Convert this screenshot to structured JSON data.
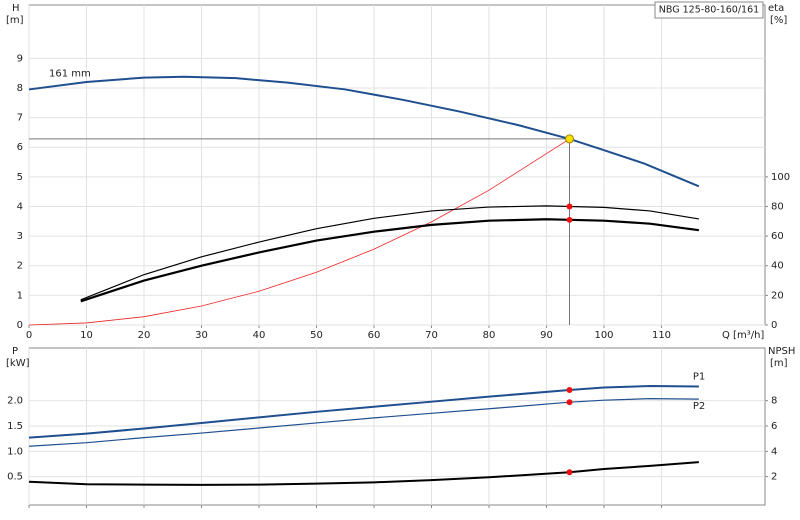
{
  "chart_data": [
    {
      "type": "line",
      "title": "NBG 125-80-160/161",
      "x_label": "Q [m³/h]",
      "y_label": "H",
      "y_unit": "[m]",
      "y2_label": "eta",
      "y2_unit": "[%]",
      "xlim": [
        0,
        128
      ],
      "xticks": [
        0,
        10,
        20,
        30,
        40,
        50,
        60,
        70,
        80,
        90,
        100,
        110
      ],
      "x_tick_labels": true,
      "ylim": [
        0,
        10.8
      ],
      "yticks": [
        0,
        1,
        2,
        3,
        4,
        5,
        6,
        7,
        8,
        9
      ],
      "y2lim": [
        0,
        216
      ],
      "y2ticks": [
        0,
        20,
        40,
        60,
        80,
        100
      ],
      "grid": true,
      "series": [
        {
          "name": "161 mm",
          "color": "#1f4f8f",
          "width": 2,
          "x": [
            0,
            10,
            20,
            27,
            36,
            45,
            55,
            65,
            75,
            85,
            94,
            100,
            107,
            116.5
          ],
          "values": [
            7.95,
            8.2,
            8.35,
            8.38,
            8.33,
            8.18,
            7.95,
            7.6,
            7.2,
            6.75,
            6.28,
            5.9,
            5.45,
            4.68
          ]
        },
        {
          "color": "#ee2222",
          "width": 0.8,
          "x": [
            0,
            10,
            20,
            30,
            40,
            50,
            60,
            70,
            80,
            94
          ],
          "values": [
            0,
            0.07,
            0.28,
            0.64,
            1.14,
            1.78,
            2.56,
            3.48,
            4.55,
            6.28
          ]
        },
        {
          "color": "#000000",
          "width": 1.2,
          "axis": "y2",
          "x": [
            9,
            20,
            30,
            40,
            50,
            60,
            70,
            80,
            90,
            94,
            100,
            108,
            116.5
          ],
          "values": [
            17,
            34,
            46,
            56,
            65,
            72,
            77,
            79.6,
            80.4,
            80,
            79.4,
            77,
            71.6
          ]
        },
        {
          "color": "#000000",
          "width": 2.2,
          "axis": "y2",
          "x": [
            9,
            20,
            30,
            40,
            50,
            60,
            70,
            80,
            90,
            94,
            100,
            108,
            116.5
          ],
          "values": [
            16,
            30,
            40,
            49,
            57,
            63,
            67.6,
            70.4,
            71.4,
            71,
            70.4,
            68.4,
            64
          ]
        }
      ],
      "points": [
        {
          "x": 94,
          "y": 6.28,
          "color": "#ffe000",
          "operating": true
        },
        {
          "x": 94,
          "y": 80,
          "color": "#ee1111",
          "axis": "y2"
        },
        {
          "x": 94,
          "y": 71,
          "color": "#ee1111",
          "axis": "y2"
        }
      ]
    },
    {
      "type": "line",
      "y_label": "P",
      "y_unit": "[kW]",
      "y2_label": "NPSH",
      "y2_unit": "[m]",
      "xlim": [
        0,
        128
      ],
      "xticks": [
        0,
        10,
        20,
        30,
        40,
        50,
        60,
        70,
        80,
        90,
        100,
        110
      ],
      "x_tick_labels": false,
      "ylim": [
        -0.06,
        3.04
      ],
      "yticks": [
        0.5,
        {
          "value": 1,
          "label": "1.0"
        },
        1.5,
        {
          "value": 2,
          "label": "2.0"
        }
      ],
      "y2lim": [
        -0.24,
        12.16
      ],
      "y2ticks": [
        2,
        4,
        6,
        8
      ],
      "grid": true,
      "series": [
        {
          "name": "P1",
          "color": "#1f4f8f",
          "width": 2,
          "x": [
            0,
            10,
            20,
            30,
            40,
            50,
            60,
            70,
            80,
            94,
            100,
            108,
            116.5
          ],
          "values": [
            1.27,
            1.35,
            1.45,
            1.56,
            1.67,
            1.78,
            1.88,
            1.98,
            2.08,
            2.21,
            2.26,
            2.29,
            2.28
          ]
        },
        {
          "name": "P2",
          "color": "#1f4f8f",
          "width": 1.2,
          "x": [
            0,
            10,
            20,
            30,
            40,
            50,
            60,
            70,
            80,
            94,
            100,
            108,
            116.5
          ],
          "values": [
            1.1,
            1.17,
            1.27,
            1.36,
            1.46,
            1.56,
            1.66,
            1.75,
            1.84,
            1.97,
            2.01,
            2.04,
            2.03
          ]
        },
        {
          "color": "#000000",
          "width": 2,
          "axis": "y2",
          "x": [
            0,
            10,
            20,
            30,
            40,
            50,
            60,
            70,
            80,
            94,
            100,
            108,
            116.5
          ],
          "values": [
            1.6,
            1.4,
            1.37,
            1.35,
            1.37,
            1.45,
            1.55,
            1.72,
            1.95,
            2.35,
            2.6,
            2.85,
            3.15
          ]
        }
      ],
      "points": [
        {
          "x": 94,
          "y": 2.21,
          "color": "#ee1111"
        },
        {
          "x": 94,
          "y": 1.97,
          "color": "#ee1111"
        },
        {
          "x": 94,
          "y": 2.35,
          "color": "#ee1111",
          "axis": "y2"
        }
      ]
    }
  ]
}
